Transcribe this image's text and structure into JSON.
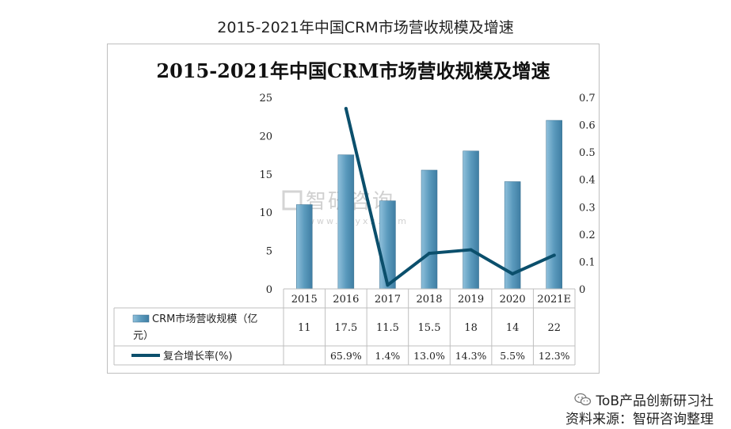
{
  "page_title": "2015-2021年中国CRM市场营收规模及增速",
  "footer": {
    "wechat_text": "ToB产品创新研习社",
    "source_text": "资料来源：智研咨询整理"
  },
  "watermark": {
    "text": "智研咨询",
    "url": "www.chyxx.com"
  },
  "colors": {
    "bar": "#4f8db0",
    "bar_light": "#8fc0db",
    "line": "#0b4f6c"
  },
  "chart_data": {
    "type": "bar",
    "title": "2015-2021年中国CRM市场营收规模及增速",
    "categories": [
      "2015",
      "2016",
      "2017",
      "2018",
      "2019",
      "2020",
      "2021E"
    ],
    "ylim": [
      0,
      25
    ],
    "y_ticks": [
      "0",
      "5",
      "10",
      "15",
      "20",
      "25"
    ],
    "y2lim": [
      0,
      0.7
    ],
    "y2_ticks": [
      "0",
      "0.1",
      "0.2",
      "0.3",
      "0.4",
      "0.5",
      "0.6",
      "0.7"
    ],
    "series": [
      {
        "name": "CRM市场营收规模（亿元）",
        "type": "bar",
        "values": [
          11,
          17.5,
          11.5,
          15.5,
          18,
          14,
          22
        ],
        "labels": [
          "11",
          "17.5",
          "11.5",
          "15.5",
          "18",
          "14",
          "22"
        ]
      },
      {
        "name": "复合增长率(%)",
        "type": "line",
        "axis": "right",
        "values": [
          null,
          0.659,
          0.014,
          0.13,
          0.143,
          0.055,
          0.123
        ],
        "labels": [
          "",
          "65.9%",
          "1.4%",
          "13.0%",
          "14.3%",
          "5.5%",
          "12.3%"
        ]
      }
    ],
    "grid": false,
    "legend": "table-below"
  }
}
